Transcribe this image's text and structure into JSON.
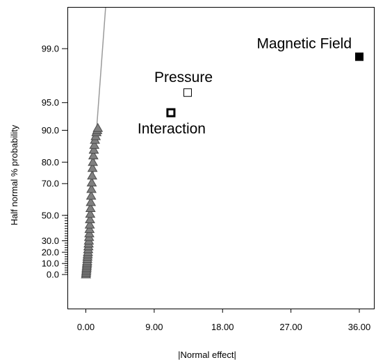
{
  "chart_data": {
    "type": "scatter",
    "title": "",
    "xlabel": "|Normal effect|",
    "ylabel": "Half normal % probability",
    "x_ticks": [
      "0.00",
      "9.00",
      "18.00",
      "27.00",
      "36.00"
    ],
    "y_ticks": [
      "0.0",
      "10.0",
      "20.0",
      "30.0",
      "50.0",
      "70.0",
      "80.0",
      "90.0",
      "95.0",
      "99.0"
    ],
    "y_scale": "half-normal probability",
    "xlim": [
      -1.0,
      38.0
    ],
    "grid": false,
    "reference_line": {
      "x": [
        0.0,
        2.6
      ],
      "p": [
        0.0,
        99.99
      ]
    },
    "error_effects": {
      "marker": "triangle",
      "color": "#808080",
      "x": [
        0.02,
        0.04,
        0.06,
        0.08,
        0.1,
        0.12,
        0.14,
        0.16,
        0.18,
        0.2,
        0.22,
        0.25,
        0.28,
        0.31,
        0.34,
        0.37,
        0.4,
        0.43,
        0.46,
        0.49,
        0.52,
        0.55,
        0.58,
        0.62,
        0.66,
        0.7,
        0.74,
        0.78,
        0.83,
        0.88,
        0.93,
        0.99,
        1.05,
        1.12,
        1.2,
        1.3,
        1.4,
        1.5,
        1.58
      ],
      "p": [
        0.0,
        1.5,
        3.0,
        4.5,
        6.0,
        7.5,
        9.0,
        10.5,
        12.0,
        14.0,
        16.0,
        18.0,
        20.0,
        22.5,
        25.0,
        27.5,
        30.0,
        33.0,
        36.0,
        39.5,
        43.0,
        47.0,
        51.0,
        55.0,
        59.0,
        63.0,
        67.0,
        70.5,
        74.0,
        77.5,
        80.0,
        82.5,
        84.5,
        86.0,
        87.5,
        88.5,
        89.5,
        90.0,
        90.5
      ]
    },
    "labeled_effects": [
      {
        "name": "Magnetic Field",
        "x": 36.0,
        "p": 98.7,
        "marker": "filled-square"
      },
      {
        "name": "Pressure",
        "x": 13.4,
        "p": 96.2,
        "marker": "open-square"
      },
      {
        "name": "Interaction",
        "x": 11.2,
        "p": 93.5,
        "marker": "bold-open-square"
      }
    ]
  }
}
